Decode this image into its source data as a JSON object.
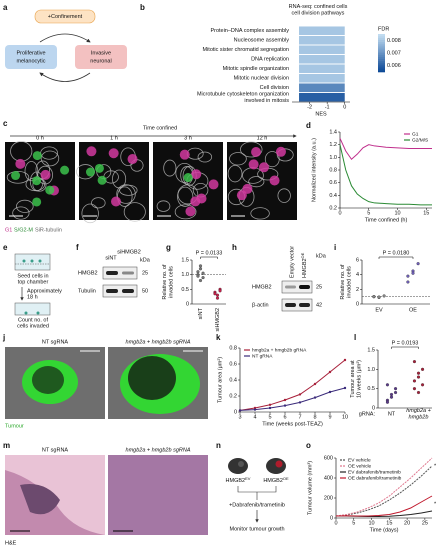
{
  "panels": {
    "a": {
      "label": "a",
      "confinement": "+Confinement",
      "left": [
        "Proliferative",
        "melanocytic"
      ],
      "right": [
        "Invasive",
        "neuronal"
      ]
    },
    "c": {
      "label": "c",
      "axis": "Time confined",
      "times": [
        "0 h",
        "1 h",
        "3 h",
        "12 h"
      ],
      "legend": [
        "G1",
        "S/G2-M",
        "SiR-tubulin"
      ]
    },
    "e": {
      "label": "e",
      "step1": [
        "Seed cells in",
        "top chamber"
      ],
      "wait": [
        "Approximately",
        "18 h"
      ],
      "step2": [
        "Count no. of",
        "cells invaded"
      ]
    },
    "f": {
      "label": "f",
      "lanes": [
        "siNT",
        "siHMGB2"
      ],
      "unit": "kDa",
      "rows": [
        {
          "name": "HMGB2",
          "kda": 25
        },
        {
          "name": "Tubulin",
          "kda": 50
        }
      ]
    },
    "h": {
      "label": "h",
      "lanes": [
        {
          "base": "Empty vector"
        },
        {
          "base": "HMGB2",
          "sup": "OE"
        }
      ],
      "unit": "kDa",
      "rows": [
        {
          "name": "HMGB2",
          "kda": 25
        },
        {
          "name": "β-actin",
          "kda": 42
        }
      ]
    },
    "j": {
      "label": "j",
      "left": "NT sgRNA",
      "right": "hmgb2a + hmgb2b sgRNA",
      "tumour": "Tumour"
    },
    "m": {
      "label": "m",
      "left": "NT sgRNA",
      "right": "hmgb2a + hmgb2b sgRNA",
      "stain": "H&E"
    },
    "n": {
      "label": "n",
      "ev": {
        "base": "HMGB2",
        "sup": "EV"
      },
      "oe": {
        "base": "HMGB2",
        "sup": "OE"
      },
      "treat": "+Dabrafenib/trametinib",
      "monitor": "Monitor tumour growth"
    }
  },
  "chart_data": [
    {
      "panel": "b",
      "type": "hbar",
      "title": [
        "RNA-seq: confined cells",
        "cell division pathways"
      ],
      "categories": [
        "Protein–DNA complex assembly",
        "Nucleosome assembly",
        "Mitotic sister chromatid segregation",
        "DNA replication",
        "Mitotic spindle organization",
        "Mitotic nuclear division",
        "Cell division",
        [
          "Microtubule cytoskeleton organization",
          "involved in mitosis"
        ]
      ],
      "values": [
        -2.6,
        -2.6,
        -2.6,
        -2.6,
        -2.6,
        -2.6,
        -2.6,
        -2.6
      ],
      "fdr": [
        0.008,
        0.008,
        0.008,
        0.008,
        0.008,
        0.008,
        0.0068,
        0.006
      ],
      "xlim": [
        -3,
        0.3
      ],
      "xticks": [
        -2,
        -1,
        0
      ],
      "xlabel": "NES",
      "colorbar": {
        "label": "FDR",
        "lim": [
          0.0055,
          0.0085
        ],
        "ticks": [
          0.008,
          0.007,
          0.006
        ]
      }
    },
    {
      "panel": "d",
      "type": "line",
      "x": [
        0,
        1,
        2,
        3,
        4,
        5,
        6,
        8,
        10,
        12,
        14,
        16
      ],
      "xlim": [
        0,
        16
      ],
      "xticks": [
        0,
        5,
        10,
        15
      ],
      "ylim": [
        0.2,
        1.4
      ],
      "yticks": [
        0.2,
        0.4,
        0.6,
        0.8,
        {
          "value": 1,
          "label": "1.0"
        },
        1.2,
        1.4
      ],
      "xlabel": "Time confined (h)",
      "ylabel": "Normalized intensity (a.u.)",
      "legend": "upper right",
      "series": [
        {
          "name": "G1",
          "color": "#c02f8c",
          "values": [
            1.3,
            1.1,
            0.97,
            1.05,
            1.15,
            1.2,
            1.18,
            1.16,
            1.15,
            1.14,
            1.14,
            1.14
          ]
        },
        {
          "name": "G2/M/S",
          "color": "#2a8a34",
          "values": [
            1.2,
            0.8,
            0.55,
            0.42,
            0.35,
            0.3,
            0.28,
            0.27,
            0.26,
            0.26,
            0.25,
            0.25
          ]
        }
      ]
    },
    {
      "panel": "g",
      "type": "strip",
      "annotation": "P = 0.0133",
      "categories": [
        "siNT",
        "siHMGB2"
      ],
      "values": [
        [
          1.0,
          1.2,
          0.9,
          1.1,
          0.8,
          1.05,
          0.95,
          1.3
        ],
        [
          0.4,
          0.3,
          0.5,
          0.35,
          0.2,
          0.45
        ]
      ],
      "colors": [
        "#777777",
        "#c8204c"
      ],
      "ylim": [
        0,
        1.5
      ],
      "yticks": [
        0,
        0.5,
        {
          "value": 1,
          "label": "1.0"
        },
        1.5
      ],
      "hline": 1,
      "ylabel": [
        "Relative no. of",
        "invaded cells"
      ]
    },
    {
      "panel": "i",
      "type": "strip",
      "annotation": "P = 0.0180",
      "categories": [
        "EV",
        "OE"
      ],
      "values": [
        [
          1,
          0.9,
          1.1,
          1.0,
          0.95
        ],
        [
          3,
          4.5,
          5.5,
          3.8,
          4.2
        ]
      ],
      "colors": [
        "#888888",
        "#7060b8"
      ],
      "ylim": [
        0,
        6
      ],
      "yticks": [
        0,
        2,
        4,
        6
      ],
      "hline": 1,
      "ylabel": [
        "Relative no. of",
        "invaded cells"
      ]
    },
    {
      "panel": "k",
      "type": "line",
      "x": [
        3,
        4,
        5,
        6,
        7,
        8,
        9,
        10
      ],
      "xlim": [
        3,
        10
      ],
      "xticks": [
        3,
        4,
        5,
        6,
        7,
        8,
        9,
        10
      ],
      "ylim": [
        0,
        0.8
      ],
      "yticks": [
        0,
        0.2,
        0.4,
        0.6,
        0.8
      ],
      "xlabel": "Time (weeks post-TEAZ)",
      "ylabel": "Tumour area (μm²)",
      "legend": "upper left",
      "markers": true,
      "series": [
        {
          "name": "hmgb2a + hmgb2b gRNA",
          "color": "#a8203a",
          "values": [
            0.02,
            0.05,
            0.09,
            0.15,
            0.22,
            0.35,
            0.5,
            0.65
          ]
        },
        {
          "name": "NT gRNA",
          "color": "#3a2a7a",
          "values": [
            0.02,
            0.03,
            0.05,
            0.08,
            0.12,
            0.18,
            0.25,
            0.3
          ]
        }
      ]
    },
    {
      "panel": "l",
      "type": "strip",
      "annotation": "P = 0.0193",
      "group_label": "gRNA:",
      "categories": [
        "NT",
        [
          "hmgb2a +",
          "hmgb2b"
        ]
      ],
      "values": [
        [
          0.2,
          0.35,
          0.5,
          0.15,
          0.28,
          0.4,
          0.6
        ],
        [
          0.5,
          0.8,
          1.0,
          0.7,
          0.9,
          0.6,
          1.2,
          0.4
        ]
      ],
      "colors": [
        "#5a3a8a",
        "#a8203a"
      ],
      "ylim": [
        0,
        1.5
      ],
      "yticks": [
        0,
        0.5,
        {
          "value": 1,
          "label": "1.0"
        },
        1.5
      ],
      "ylabel": [
        "Tumour area at",
        "10 weeks (μm²)"
      ]
    },
    {
      "panel": "o",
      "type": "line",
      "x": [
        0,
        3,
        6,
        9,
        12,
        15,
        18,
        21,
        24,
        27
      ],
      "xlim": [
        0,
        27
      ],
      "xticks": [
        0,
        5,
        10,
        15,
        20,
        25
      ],
      "ylim": [
        0,
        600
      ],
      "yticks": [
        0,
        200,
        400,
        600
      ],
      "xlabel": "Time (days)",
      "ylabel": "Tumour volume (mm³)",
      "legend": "upper left",
      "annotations": [
        "*",
        "*"
      ],
      "series": [
        {
          "name": "EV vehicle",
          "color": "#555555",
          "dash": true,
          "values": [
            20,
            30,
            50,
            80,
            120,
            180,
            250,
            330,
            420,
            520
          ]
        },
        {
          "name": "OE vehicle",
          "color": "#e07a90",
          "dash": true,
          "values": [
            20,
            35,
            60,
            100,
            150,
            220,
            310,
            400,
            500,
            600
          ]
        },
        {
          "name": "EV dabrafenib/trametinib",
          "color": "#222222",
          "values": [
            20,
            20,
            18,
            15,
            15,
            18,
            25,
            35,
            50,
            70
          ]
        },
        {
          "name": "OE dabrafenib/trametinib",
          "color": "#c0182c",
          "values": [
            20,
            22,
            20,
            20,
            25,
            35,
            60,
            100,
            160,
            220
          ]
        }
      ]
    }
  ]
}
